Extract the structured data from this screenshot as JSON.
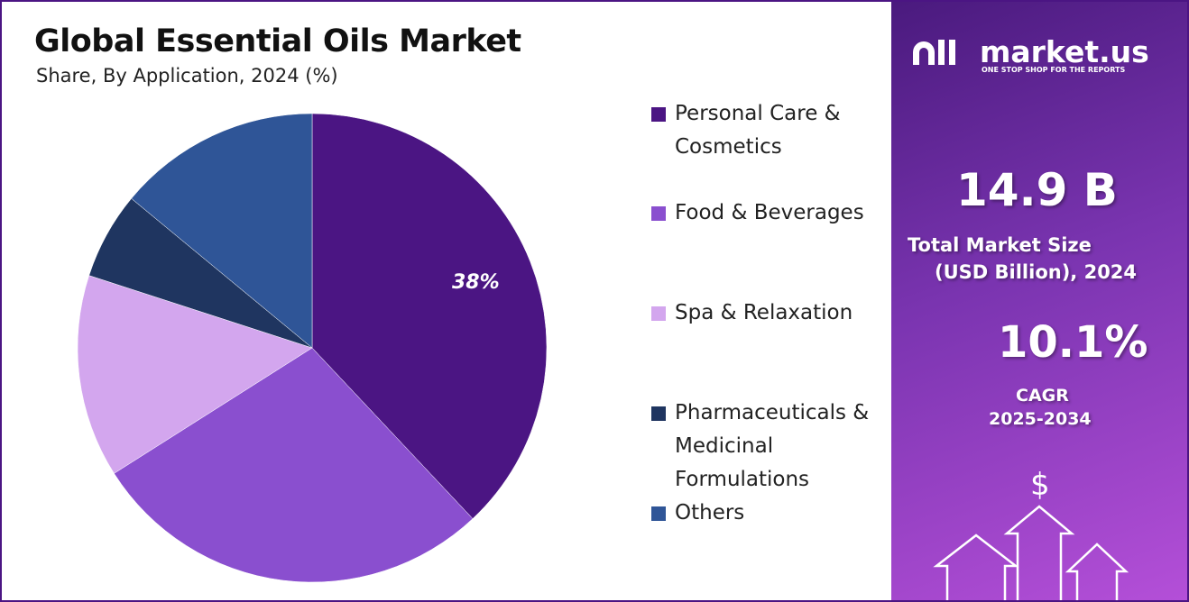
{
  "chart_data": {
    "type": "pie",
    "title": "Global Essential Oils Market",
    "subtitle": "Share, By Application, 2024 (%)",
    "categories": [
      "Personal Care & Cosmetics",
      "Food & Beverages",
      "Spa & Relaxation",
      "Pharmaceuticals & Medicinal Formulations",
      "Others"
    ],
    "values": [
      38,
      28,
      14,
      6,
      14
    ],
    "value_labels": [
      "38%",
      null,
      null,
      null,
      null
    ],
    "colors": [
      "#4b1583",
      "#8a4fcf",
      "#d3a6ee",
      "#1f3560",
      "#2f5597"
    ],
    "legend": "right"
  },
  "panel": {
    "brand": "market.us",
    "tagline": "ONE STOP SHOP FOR THE REPORTS",
    "market_size": "14.9 B",
    "market_size_label": "Total Market Size",
    "market_size_unit": "(USD Billion), 2024",
    "cagr": "10.1%",
    "cagr_label": "CAGR",
    "cagr_period": "2025-2034",
    "currency_symbol": "$"
  }
}
